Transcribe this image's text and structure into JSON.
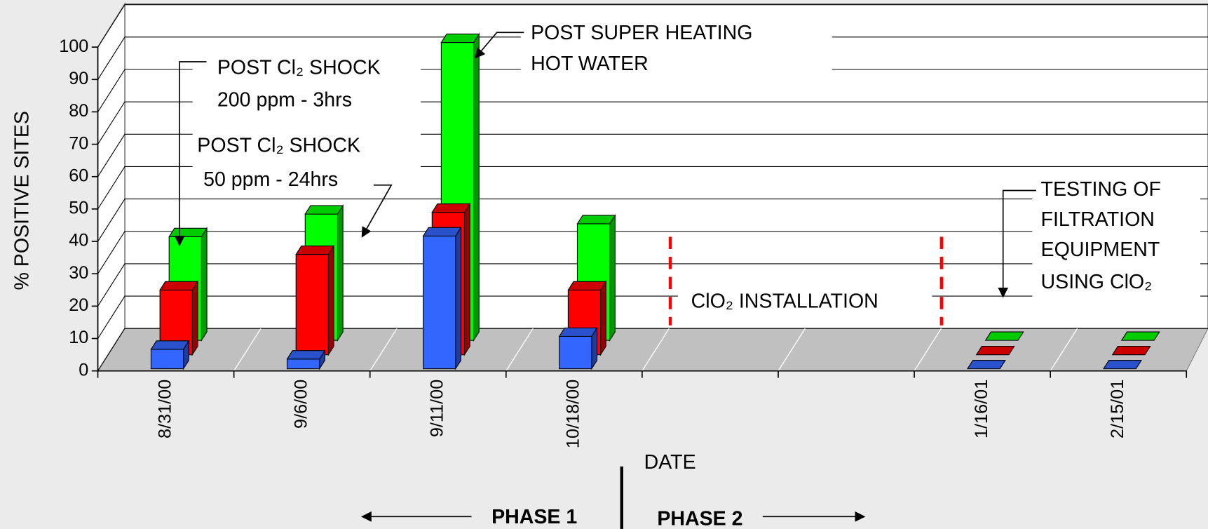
{
  "chart_data": {
    "type": "bar3d",
    "y_label": "% POSITIVE SITES",
    "x_label": "DATE",
    "categories": [
      "8/31/00",
      "9/6/00",
      "9/11/00",
      "10/18/00",
      null,
      null,
      "1/16/01",
      "2/15/01"
    ],
    "series": [
      {
        "color": "#3366ff",
        "values": [
          6,
          3,
          41,
          10,
          null,
          null,
          0,
          0
        ]
      },
      {
        "color": "#ff0000",
        "values": [
          20,
          31,
          44,
          20,
          null,
          null,
          0,
          0
        ]
      },
      {
        "color": "#00ff00",
        "values": [
          32,
          39,
          92,
          36,
          null,
          null,
          0,
          0
        ]
      }
    ],
    "ylim": [
      0,
      100
    ],
    "yticks": [
      0,
      10,
      20,
      30,
      40,
      50,
      60,
      70,
      80,
      90,
      100
    ],
    "grid": true,
    "annotations": [
      "POST Cl₂ SHOCK",
      "200 ppm - 3hrs",
      "POST Cl₂ SHOCK",
      "50 ppm - 24hrs",
      "POST SUPER HEATING",
      "HOT WATER",
      "ClO₂  INSTALLATION",
      "TESTING OF",
      "FILTRATION",
      "EQUIPMENT",
      "USING ClO₂"
    ],
    "phases": [
      "PHASE 1",
      "PHASE 2"
    ]
  }
}
